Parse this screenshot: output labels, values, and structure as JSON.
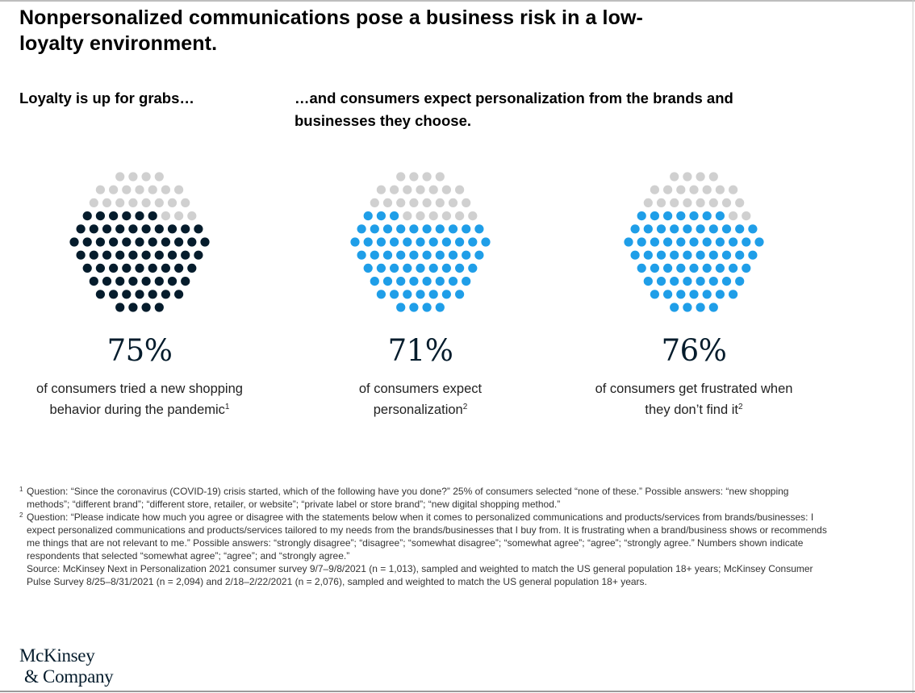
{
  "title": "Nonpersonalized communications pose a business risk in a low-loyalty environment.",
  "subheading_left": "Loyalty is up for grabs…",
  "subheading_right": "…and consumers expect personalization from the brands and businesses they choose.",
  "colors": {
    "empty_dot": "#d0d0d0",
    "dark_fill": "#051c2c",
    "blue_fill": "#1f9ee8"
  },
  "chart_data": [
    {
      "type": "dot-circle",
      "value": 75,
      "value_label": "75%",
      "description": "of consumers tried a new shopping behavior during the pandemic",
      "footnote": "1",
      "fill_color": "#051c2c"
    },
    {
      "type": "dot-circle",
      "value": 71,
      "value_label": "71%",
      "description": "of consumers expect personalization",
      "footnote": "2",
      "fill_color": "#1f9ee8"
    },
    {
      "type": "dot-circle",
      "value": 76,
      "value_label": "76%",
      "description": "of consumers get frustrated when they don’t find it",
      "footnote": "2",
      "fill_color": "#1f9ee8"
    }
  ],
  "footnotes": [
    {
      "mark": "1",
      "text": "Question: “Since the coronavirus (COVID-19) crisis started, which of the following have you done?” 25% of consumers selected “none of these.” Possible answers: “new shopping methods”; “different brand”; “different store, retailer, or website”; “private label or store brand”; “new digital shopping method.”"
    },
    {
      "mark": "2",
      "text": "Question: “Please indicate how much you agree or disagree with the statements below when it comes to personalized communications and products/services from brands/businesses: I expect personalized communications and products/services tailored to my needs from the brands/businesses that I buy from. It is frustrating when a brand/business shows or recommends me things that are not relevant to me.” Possible answers: “strongly disagree”; “disagree”; “somewhat disagree”; “somewhat agree”; “agree”; “strongly agree.” Numbers shown indicate respondents that selected “somewhat agree”; “agree”; and “strongly agree.”"
    }
  ],
  "source": "Source: McKinsey Next in Personalization 2021 consumer survey 9/7–9/8/2021 (n = 1,013), sampled and weighted to match the US general population 18+ years; McKinsey Consumer Pulse Survey 8/25–8/31/2021 (n = 2,094) and 2/18–2/22/2021 (n = 2,076), sampled and weighted to match the US general population 18+ years.",
  "logo": {
    "line1": "McKinsey",
    "line2": "& Company"
  }
}
